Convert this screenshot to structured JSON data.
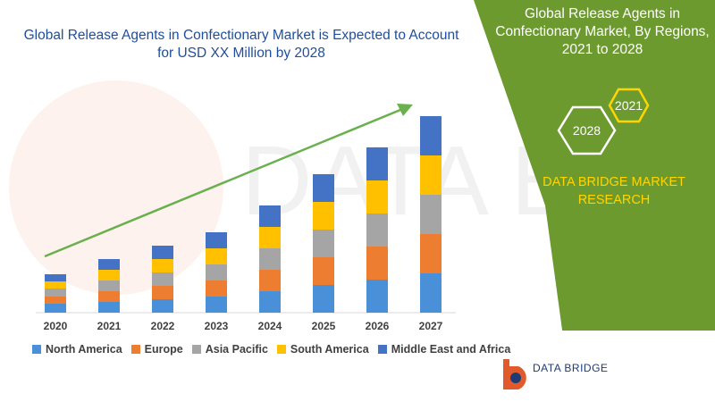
{
  "chart_data": {
    "type": "bar",
    "stacked": true,
    "title": "Global Release Agents in Confectionary Market is Expected to Account for  USD XX Million by 2028",
    "categories": [
      "2020",
      "2021",
      "2022",
      "2023",
      "2024",
      "2025",
      "2026",
      "2027"
    ],
    "series": [
      {
        "name": "North America",
        "color": "#4a90d9",
        "values": [
          10,
          12,
          15,
          18,
          24,
          31,
          37,
          44
        ]
      },
      {
        "name": "Europe",
        "color": "#ed7d31",
        "values": [
          8,
          12,
          15,
          18,
          24,
          31,
          37,
          44
        ]
      },
      {
        "name": "Asia Pacific",
        "color": "#a5a5a5",
        "values": [
          9,
          12,
          15,
          18,
          24,
          31,
          37,
          44
        ]
      },
      {
        "name": "South America",
        "color": "#ffc000",
        "values": [
          8,
          12,
          15,
          18,
          24,
          31,
          37,
          44
        ]
      },
      {
        "name": "Middle East and Africa",
        "color": "#4472c4",
        "values": [
          8,
          12,
          15,
          18,
          24,
          31,
          37,
          44
        ]
      }
    ],
    "ylim": [
      0,
      240
    ],
    "grid": false,
    "legend_position": "bottom",
    "trend_arrow": true
  },
  "side_panel": {
    "title": "Global Release Agents in Confectionary Market, By Regions, 2021 to 2028",
    "hex_year_1": "2021",
    "hex_year_2": "2028",
    "brand_line_1": "DATA BRIDGE MARKET",
    "brand_line_2": "RESEARCH",
    "panel_color": "#6c9a2f",
    "accent_color": "#ffd500"
  },
  "logo": {
    "text": "DATA BRIDGE"
  },
  "watermark": {
    "text": "DATA BRIDGE"
  }
}
